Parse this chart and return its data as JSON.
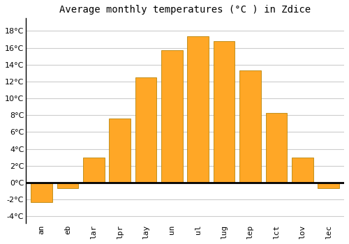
{
  "title": "Average monthly temperatures (°C ) in Zdice",
  "month_labels": [
    "an",
    "eb",
    "lar",
    "lpr",
    "lay",
    "un",
    "ul",
    "lug",
    "lep",
    "lct",
    "lov",
    "lec"
  ],
  "values": [
    -2.3,
    -0.7,
    3.0,
    7.6,
    12.5,
    15.7,
    17.4,
    16.8,
    13.3,
    8.3,
    3.0,
    -0.7
  ],
  "bar_color": "#FFA726",
  "bar_edge_color": "#B8860B",
  "background_color": "#FFFFFF",
  "grid_color": "#CCCCCC",
  "ylim": [
    -4.8,
    19.5
  ],
  "yticks": [
    -4,
    -2,
    0,
    2,
    4,
    6,
    8,
    10,
    12,
    14,
    16,
    18
  ],
  "zero_line_color": "#000000",
  "title_fontsize": 10,
  "tick_fontsize": 8,
  "bar_width": 0.82
}
